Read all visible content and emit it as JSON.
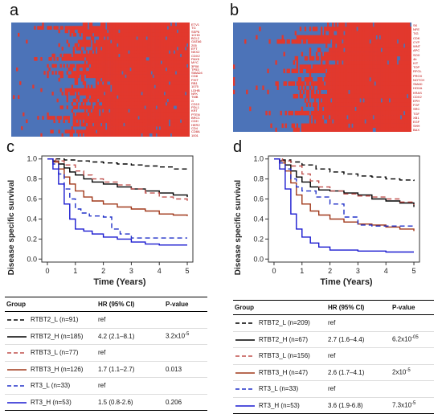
{
  "panels": {
    "a": {
      "letter": "a",
      "heatmap_rows": [
        "ETV1",
        "TG",
        "SSP6",
        "1CHD",
        "BCL2",
        "GATA6",
        "205",
        "EFT",
        "NKX2",
        "CDX2",
        "PAX5",
        "MYC",
        "3P08",
        "TP53",
        "SMAD4",
        "CD8",
        "FHIT",
        "RB1",
        "1075",
        "LDHB",
        "NFK",
        "TMB",
        "G",
        "CD13",
        "PDL1",
        "KRT",
        "PTEN",
        "BRC1",
        "CDH",
        "HER2",
        "CD4",
        "CD8A",
        "1001"
      ],
      "colors": {
        "low": "#4c73b8",
        "high": "#e2382d"
      }
    },
    "b": {
      "letter": "b",
      "heatmap_rows": [
        "SK",
        "NFE",
        "TIG",
        "CDK",
        "CYP",
        "WNT",
        "APC",
        "SOX",
        "4b",
        "KIT",
        "TOP",
        "RFGL",
        "PROX",
        "NOTCH",
        "SMAD",
        "HOXA",
        "KRAS",
        "CDX2",
        "EPH",
        "FGF",
        "SRC",
        "TGF",
        "XB1",
        "EGF",
        "SHH",
        "BAX"
      ],
      "colors": {
        "low": "#4c73b8",
        "high": "#e2382d"
      }
    },
    "c": {
      "letter": "c",
      "chart_data": {
        "type": "line",
        "xlabel": "Time (Years)",
        "ylabel": "Disease specific survival",
        "xlim": [
          -0.2,
          5.2
        ],
        "ylim": [
          -0.03,
          1.03
        ],
        "xticks": [
          0,
          1,
          2,
          3,
          4,
          5
        ],
        "yticks": [
          0.0,
          0.2,
          0.4,
          0.6,
          0.8,
          1.0
        ],
        "series": [
          {
            "name": "RTBT2_L (n=91)",
            "color": "#000000",
            "dash": "6,4",
            "points": [
              [
                0,
                1.0
              ],
              [
                0.3,
                1.0
              ],
              [
                0.6,
                0.99
              ],
              [
                1.0,
                0.98
              ],
              [
                1.5,
                0.97
              ],
              [
                2.0,
                0.96
              ],
              [
                2.5,
                0.95
              ],
              [
                3.0,
                0.94
              ],
              [
                3.5,
                0.93
              ],
              [
                4.0,
                0.92
              ],
              [
                4.5,
                0.9
              ],
              [
                5.0,
                0.88
              ]
            ]
          },
          {
            "name": "RTBT2_H (n=185)",
            "color": "#000000",
            "dash": "",
            "points": [
              [
                0,
                1.0
              ],
              [
                0.2,
                0.98
              ],
              [
                0.4,
                0.95
              ],
              [
                0.6,
                0.91
              ],
              [
                0.8,
                0.87
              ],
              [
                1.0,
                0.84
              ],
              [
                1.3,
                0.8
              ],
              [
                1.6,
                0.77
              ],
              [
                2.0,
                0.75
              ],
              [
                2.5,
                0.72
              ],
              [
                3.0,
                0.7
              ],
              [
                3.5,
                0.68
              ],
              [
                4.0,
                0.66
              ],
              [
                4.5,
                0.64
              ],
              [
                5.0,
                0.62
              ]
            ]
          },
          {
            "name": "RTBT3_L (n=77)",
            "color": "#c0504d",
            "dash": "6,4",
            "points": [
              [
                0,
                1.0
              ],
              [
                0.3,
                0.98
              ],
              [
                0.6,
                0.94
              ],
              [
                1.0,
                0.88
              ],
              [
                1.3,
                0.84
              ],
              [
                1.6,
                0.8
              ],
              [
                2.0,
                0.77
              ],
              [
                2.5,
                0.74
              ],
              [
                3.0,
                0.7
              ],
              [
                3.5,
                0.66
              ],
              [
                4.0,
                0.62
              ],
              [
                4.5,
                0.6
              ],
              [
                5.0,
                0.58
              ]
            ]
          },
          {
            "name": "RTBT3_H (n=126)",
            "color": "#a0381a",
            "dash": "",
            "points": [
              [
                0,
                1.0
              ],
              [
                0.2,
                0.97
              ],
              [
                0.4,
                0.9
              ],
              [
                0.6,
                0.82
              ],
              [
                0.8,
                0.75
              ],
              [
                1.0,
                0.68
              ],
              [
                1.3,
                0.62
              ],
              [
                1.6,
                0.58
              ],
              [
                2.0,
                0.55
              ],
              [
                2.5,
                0.52
              ],
              [
                3.0,
                0.5
              ],
              [
                3.5,
                0.48
              ],
              [
                4.0,
                0.45
              ],
              [
                4.5,
                0.44
              ],
              [
                5.0,
                0.43
              ]
            ]
          },
          {
            "name": "RT3_L (n=33)",
            "color": "#2030c8",
            "dash": "6,4",
            "points": [
              [
                0,
                1.0
              ],
              [
                0.2,
                0.95
              ],
              [
                0.4,
                0.85
              ],
              [
                0.6,
                0.7
              ],
              [
                0.8,
                0.6
              ],
              [
                1.0,
                0.5
              ],
              [
                1.2,
                0.46
              ],
              [
                1.5,
                0.43
              ],
              [
                2.0,
                0.42
              ],
              [
                2.3,
                0.3
              ],
              [
                2.6,
                0.25
              ],
              [
                3.0,
                0.21
              ],
              [
                4.0,
                0.21
              ],
              [
                5.0,
                0.21
              ]
            ]
          },
          {
            "name": "RT3_H (n=53)",
            "color": "#1a1ad0",
            "dash": "",
            "points": [
              [
                0,
                1.0
              ],
              [
                0.2,
                0.9
              ],
              [
                0.4,
                0.75
              ],
              [
                0.6,
                0.55
              ],
              [
                0.8,
                0.4
              ],
              [
                1.0,
                0.3
              ],
              [
                1.3,
                0.28
              ],
              [
                1.6,
                0.25
              ],
              [
                2.0,
                0.22
              ],
              [
                2.5,
                0.2
              ],
              [
                3.0,
                0.17
              ],
              [
                3.5,
                0.15
              ],
              [
                4.0,
                0.14
              ],
              [
                5.0,
                0.14
              ]
            ]
          }
        ]
      },
      "table": {
        "headers": [
          "Group",
          "HR (95% CI)",
          "P-value"
        ],
        "rows": [
          {
            "group": "RTBT2_L (n=91)",
            "hr": "ref",
            "p": "",
            "color": "#000000",
            "dash": "6,4"
          },
          {
            "group": "RTBT2_H (n=185)",
            "hr": "4.2 (2.1–8.1)",
            "p": "3.2x10",
            "p_exp": "-5",
            "color": "#000000",
            "dash": ""
          },
          {
            "group": "RTBT3_L (n=77)",
            "hr": "ref",
            "p": "",
            "color": "#c0504d",
            "dash": "6,4"
          },
          {
            "group": "RTBT3_H (n=126)",
            "hr": "1.7 (1.1–2.7)",
            "p": "0.013",
            "color": "#a0381a",
            "dash": ""
          },
          {
            "group": "RT3_L (n=33)",
            "hr": "ref",
            "p": "",
            "color": "#2030c8",
            "dash": "6,4"
          },
          {
            "group": "RT3_H (n=53)",
            "hr": "1.5 (0.8-2.6)",
            "p": "0.206",
            "color": "#1a1ad0",
            "dash": ""
          }
        ]
      }
    },
    "d": {
      "letter": "d",
      "chart_data": {
        "type": "line",
        "xlabel": "Time (Years)",
        "ylabel": "Disease specific survival",
        "xlim": [
          -0.2,
          5.2
        ],
        "ylim": [
          -0.03,
          1.03
        ],
        "xticks": [
          0,
          1,
          2,
          3,
          4,
          5
        ],
        "yticks": [
          0.0,
          0.2,
          0.4,
          0.6,
          0.8,
          1.0
        ],
        "series": [
          {
            "name": "RTBT2_L (n=209)",
            "color": "#000000",
            "dash": "6,4",
            "points": [
              [
                0,
                1.0
              ],
              [
                0.3,
                0.99
              ],
              [
                0.6,
                0.97
              ],
              [
                1.0,
                0.94
              ],
              [
                1.5,
                0.9
              ],
              [
                2.0,
                0.87
              ],
              [
                2.5,
                0.85
              ],
              [
                3.0,
                0.83
              ],
              [
                3.5,
                0.82
              ],
              [
                4.0,
                0.8
              ],
              [
                4.5,
                0.79
              ],
              [
                5.0,
                0.78
              ]
            ]
          },
          {
            "name": "RTBT2_H (n=67)",
            "color": "#000000",
            "dash": "",
            "points": [
              [
                0,
                1.0
              ],
              [
                0.2,
                0.98
              ],
              [
                0.4,
                0.94
              ],
              [
                0.6,
                0.88
              ],
              [
                0.8,
                0.82
              ],
              [
                1.0,
                0.77
              ],
              [
                1.3,
                0.72
              ],
              [
                1.6,
                0.69
              ],
              [
                2.0,
                0.68
              ],
              [
                2.5,
                0.66
              ],
              [
                3.0,
                0.64
              ],
              [
                3.5,
                0.6
              ],
              [
                4.0,
                0.58
              ],
              [
                4.5,
                0.56
              ],
              [
                5.0,
                0.52
              ]
            ]
          },
          {
            "name": "RTBT3_L (n=156)",
            "color": "#c0504d",
            "dash": "6,4",
            "points": [
              [
                0,
                1.0
              ],
              [
                0.3,
                0.98
              ],
              [
                0.6,
                0.93
              ],
              [
                1.0,
                0.85
              ],
              [
                1.3,
                0.78
              ],
              [
                1.6,
                0.72
              ],
              [
                2.0,
                0.68
              ],
              [
                2.5,
                0.65
              ],
              [
                3.0,
                0.63
              ],
              [
                3.5,
                0.62
              ],
              [
                4.0,
                0.6
              ],
              [
                4.5,
                0.57
              ],
              [
                5.0,
                0.54
              ]
            ]
          },
          {
            "name": "RTBT3_H (n=47)",
            "color": "#a0381a",
            "dash": "",
            "points": [
              [
                0,
                1.0
              ],
              [
                0.2,
                0.96
              ],
              [
                0.4,
                0.88
              ],
              [
                0.6,
                0.76
              ],
              [
                0.8,
                0.64
              ],
              [
                1.0,
                0.55
              ],
              [
                1.3,
                0.48
              ],
              [
                1.6,
                0.44
              ],
              [
                2.0,
                0.4
              ],
              [
                2.5,
                0.37
              ],
              [
                3.0,
                0.35
              ],
              [
                3.5,
                0.34
              ],
              [
                4.0,
                0.32
              ],
              [
                4.5,
                0.3
              ],
              [
                5.0,
                0.28
              ]
            ]
          },
          {
            "name": "RT3_L (n=33)",
            "color": "#2030c8",
            "dash": "6,4",
            "points": [
              [
                0,
                1.0
              ],
              [
                0.2,
                0.96
              ],
              [
                0.4,
                0.9
              ],
              [
                0.6,
                0.8
              ],
              [
                0.8,
                0.72
              ],
              [
                1.0,
                0.68
              ],
              [
                1.5,
                0.62
              ],
              [
                2.0,
                0.55
              ],
              [
                2.5,
                0.42
              ],
              [
                3.0,
                0.34
              ],
              [
                3.5,
                0.33
              ],
              [
                4.0,
                0.33
              ],
              [
                4.5,
                0.33
              ],
              [
                5.0,
                0.33
              ]
            ]
          },
          {
            "name": "RT3_H (n=53)",
            "color": "#1a1ad0",
            "dash": "",
            "points": [
              [
                0,
                1.0
              ],
              [
                0.2,
                0.9
              ],
              [
                0.4,
                0.7
              ],
              [
                0.6,
                0.45
              ],
              [
                0.8,
                0.3
              ],
              [
                1.0,
                0.22
              ],
              [
                1.3,
                0.16
              ],
              [
                1.6,
                0.12
              ],
              [
                2.0,
                0.09
              ],
              [
                3.0,
                0.08
              ],
              [
                4.0,
                0.07
              ],
              [
                5.0,
                0.07
              ]
            ]
          }
        ]
      },
      "table": {
        "headers": [
          "Group",
          "HR (95% CI)",
          "P-value"
        ],
        "rows": [
          {
            "group": "RTBT2_L (n=209)",
            "hr": "ref",
            "p": "",
            "color": "#000000",
            "dash": "6,4"
          },
          {
            "group": "RTBT2_H (n=67)",
            "hr": "2.7 (1.6–4.4)",
            "p": "6.2x10",
            "p_exp": "-05",
            "color": "#000000",
            "dash": ""
          },
          {
            "group": "RTBT3_L (n=156)",
            "hr": "ref",
            "p": "",
            "color": "#c0504d",
            "dash": "6,4"
          },
          {
            "group": "RTBT3_H (n=47)",
            "hr": "2.6 (1.7–4.1)",
            "p": "2x10",
            "p_exp": "-5",
            "color": "#a0381a",
            "dash": ""
          },
          {
            "group": "RT3_L (n=33)",
            "hr": "ref",
            "p": "",
            "color": "#2030c8",
            "dash": "6,4"
          },
          {
            "group": "RT3_H (n=53)",
            "hr": "3.6 (1.9-6.8)",
            "p": "7.3x10",
            "p_exp": "-5",
            "color": "#1a1ad0",
            "dash": ""
          }
        ]
      }
    }
  }
}
